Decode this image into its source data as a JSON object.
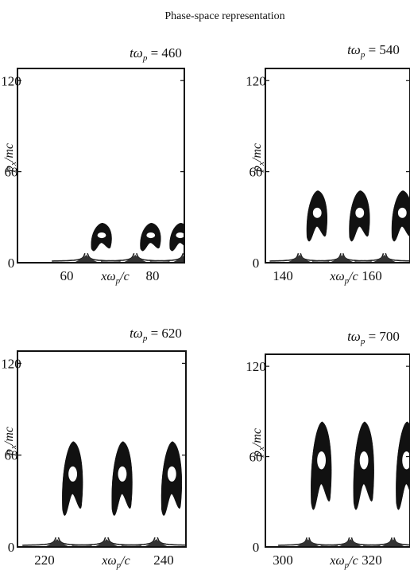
{
  "figure_title": "Phase-space representation",
  "panels": [
    {
      "time_label": "tω",
      "time_sub": "p",
      "time_value": "= 460",
      "ylabel_main": "p",
      "ylabel_sub": "x",
      "ylabel_rest": "/mc",
      "xlabel_main": "xω",
      "xlabel_sub": "p",
      "xlabel_rest": "/c",
      "yticks": [
        "120",
        "60",
        "0"
      ],
      "xticks": [
        "60",
        "80"
      ]
    },
    {
      "time_label": "tω",
      "time_sub": "p",
      "time_value": "= 540",
      "ylabel_main": "p",
      "ylabel_sub": "x",
      "ylabel_rest": "/mc",
      "xlabel_main": "xω",
      "xlabel_sub": "p",
      "xlabel_rest": "/c",
      "yticks": [
        "120",
        "60",
        "0"
      ],
      "xticks": [
        "140",
        "160"
      ]
    },
    {
      "time_label": "tω",
      "time_sub": "p",
      "time_value": "= 620",
      "ylabel_main": "p",
      "ylabel_sub": "x",
      "ylabel_rest": "/mc",
      "xlabel_main": "xω",
      "xlabel_sub": "p",
      "xlabel_rest": "/c",
      "yticks": [
        "120",
        "60",
        "0"
      ],
      "xticks": [
        "220",
        "240"
      ]
    },
    {
      "time_label": "tω",
      "time_sub": "p",
      "time_value": "= 700",
      "ylabel_main": "p",
      "ylabel_sub": "x",
      "ylabel_rest": "/mc",
      "xlabel_main": "xω",
      "xlabel_sub": "p",
      "xlabel_rest": "/c",
      "yticks": [
        "120",
        "60",
        "0"
      ],
      "xticks": [
        "300",
        "320"
      ]
    }
  ],
  "chart_data": [
    {
      "type": "scatter",
      "title": "tω_p = 460",
      "xlabel": "xω_p/c",
      "ylabel": "p_x/mc",
      "xlim": [
        56,
        90
      ],
      "ylim": [
        0,
        128
      ],
      "separatrix_x": [
        70,
        80,
        90
      ],
      "bunch_peak_px": 22,
      "bunches_x": [
        73,
        83,
        89
      ]
    },
    {
      "type": "scatter",
      "title": "tω_p = 540",
      "xlabel": "xω_p/c",
      "ylabel": "p_x/mc",
      "xlim": [
        136,
        170
      ],
      "ylim": [
        0,
        128
      ],
      "separatrix_x": [
        144,
        154,
        164
      ],
      "bunch_peak_px": 40,
      "bunches_x": [
        148,
        158,
        168
      ]
    },
    {
      "type": "scatter",
      "title": "tω_p = 620",
      "xlabel": "xω_p/c",
      "ylabel": "p_x/mc",
      "xlim": [
        216,
        250
      ],
      "ylim": [
        0,
        128
      ],
      "separatrix_x": [
        224,
        234,
        244
      ],
      "bunch_peak_px": 58,
      "bunches_x": [
        227,
        237,
        247
      ]
    },
    {
      "type": "scatter",
      "title": "tω_p = 700",
      "xlabel": "xω_p/c",
      "ylabel": "p_x/mc",
      "xlim": [
        296,
        330
      ],
      "ylim": [
        0,
        128
      ],
      "separatrix_x": [
        306,
        316,
        326
      ],
      "bunch_peak_px": 70,
      "bunches_x": [
        309,
        319,
        329
      ]
    }
  ]
}
